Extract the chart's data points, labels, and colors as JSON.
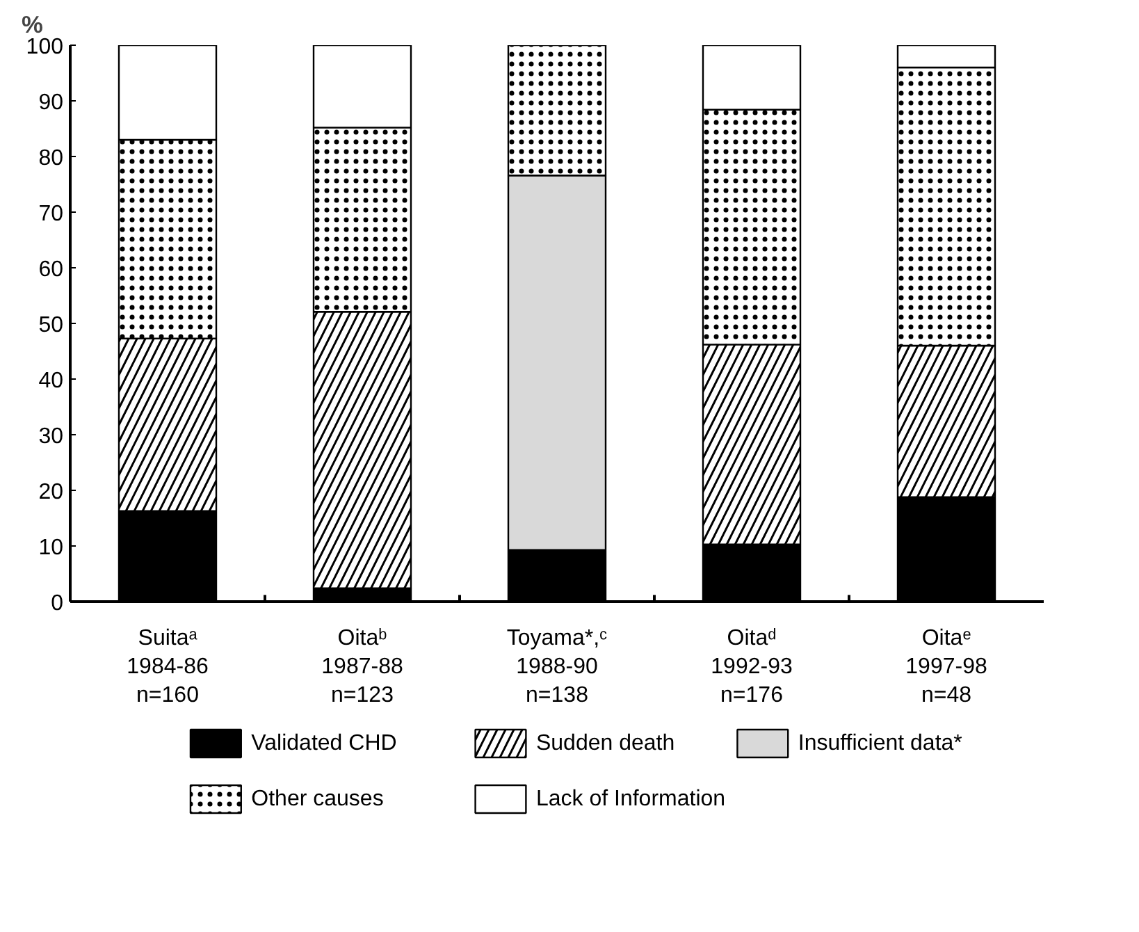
{
  "chart_data": {
    "type": "bar",
    "stacked": true,
    "ylabel": "%",
    "categories": [
      "Suitaᵃ\n1984-86\nn=160",
      "Oitaᵇ\n1987-88\nn=123",
      "Toyama*,ᶜ\n1988-90\nn=138",
      "Oitaᵈ\n1992-93\nn=176",
      "Oitaᵉ\n1997-98\nn=48"
    ],
    "series": [
      {
        "name": "Validated CHD",
        "color": "#000000",
        "values": [
          16.3,
          2.4,
          9.3,
          10.3,
          18.8
        ]
      },
      {
        "name": "Sudden death",
        "color": "#ffffff",
        "values": [
          31.0,
          49.7,
          0,
          35.9,
          27.2
        ]
      },
      {
        "name": "Insufficient data*",
        "color": "#d9d9d9",
        "values": [
          0,
          0,
          67.3,
          0,
          0
        ]
      },
      {
        "name": "Other causes",
        "color": "#ffffff",
        "values": [
          35.7,
          33.1,
          23.4,
          42.2,
          50.0
        ]
      },
      {
        "name": "Lack of Information",
        "color": "#ffffff",
        "values": [
          17.0,
          14.8,
          0,
          11.6,
          4.0
        ]
      }
    ],
    "ylim": [
      0,
      100
    ],
    "yticks": [
      0,
      10,
      20,
      30,
      40,
      50,
      60,
      70,
      80,
      90,
      100
    ],
    "grid": false,
    "legend": "bottom"
  }
}
